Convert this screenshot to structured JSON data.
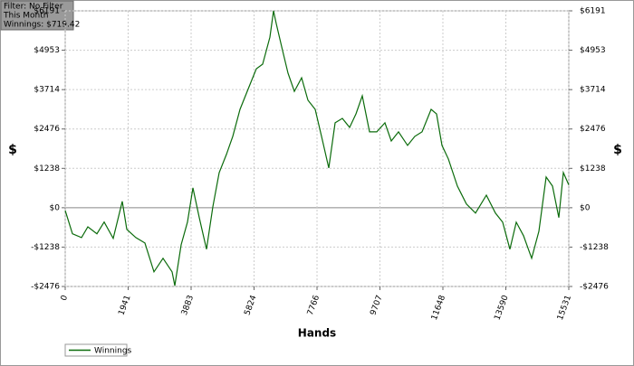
{
  "chart_data": {
    "type": "line",
    "info": [
      "Filter: No Filter",
      "This Month",
      "Winnings: $719.42"
    ],
    "xlabel": "Hands",
    "ylabel": "$",
    "y2label": "$",
    "x": [
      0,
      223,
      503,
      698,
      978,
      1201,
      1480,
      1760,
      1900,
      2179,
      2458,
      2737,
      3017,
      3296,
      3380,
      3575,
      3771,
      3938,
      4134,
      4357,
      4553,
      4748,
      4972,
      5168,
      5391,
      5670,
      5893,
      6089,
      6312,
      6424,
      6508,
      6703,
      6871,
      7066,
      7290,
      7485,
      7709,
      7904,
      8128,
      8323,
      8547,
      8770,
      8966,
      9162,
      9385,
      9609,
      9860,
      10055,
      10279,
      10558,
      10782,
      11005,
      11284,
      11452,
      11619,
      11815,
      12094,
      12374,
      12653,
      12988,
      13267,
      13491,
      13714,
      13910,
      14133,
      14385,
      14608,
      14832,
      15027,
      15223,
      15363,
      15531
    ],
    "series": [
      {
        "name": "Winnings",
        "color": "#0b6b0b",
        "values": [
          -85,
          -820,
          -940,
          -600,
          -820,
          -450,
          -965,
          200,
          -680,
          -940,
          -1110,
          -2015,
          -1590,
          -2015,
          -2450,
          -1165,
          -450,
          625,
          -310,
          -1305,
          30,
          1105,
          1675,
          2245,
          3095,
          3805,
          4370,
          4515,
          5365,
          6191,
          5790,
          4940,
          4230,
          3660,
          4085,
          3380,
          3095,
          2245,
          1250,
          2670,
          2810,
          2525,
          2950,
          3520,
          2385,
          2385,
          2670,
          2100,
          2385,
          1960,
          2245,
          2385,
          3095,
          2950,
          1960,
          1535,
          680,
          115,
          -170,
          395,
          -170,
          -455,
          -1305,
          -455,
          -880,
          -1590,
          -740,
          965,
          680,
          -310,
          1105,
          719.42
        ]
      }
    ],
    "xlim": [
      0,
      15531
    ],
    "xticks": [
      0,
      1941,
      3883,
      5824,
      7766,
      9707,
      11648,
      13590,
      15531
    ],
    "ylim": [
      -2476,
      6191
    ],
    "yticks": [
      {
        "value": -2476,
        "label": "-$2476"
      },
      {
        "value": -1238,
        "label": "-$1238"
      },
      {
        "value": 0,
        "label": "$0"
      },
      {
        "value": 1238,
        "label": "$1238"
      },
      {
        "value": 2476,
        "label": "$2476"
      },
      {
        "value": 3714,
        "label": "$3714"
      },
      {
        "value": 4953,
        "label": "$4953"
      },
      {
        "value": 6191,
        "label": "$6191"
      }
    ],
    "grid": true,
    "legend": "bottom-left"
  }
}
